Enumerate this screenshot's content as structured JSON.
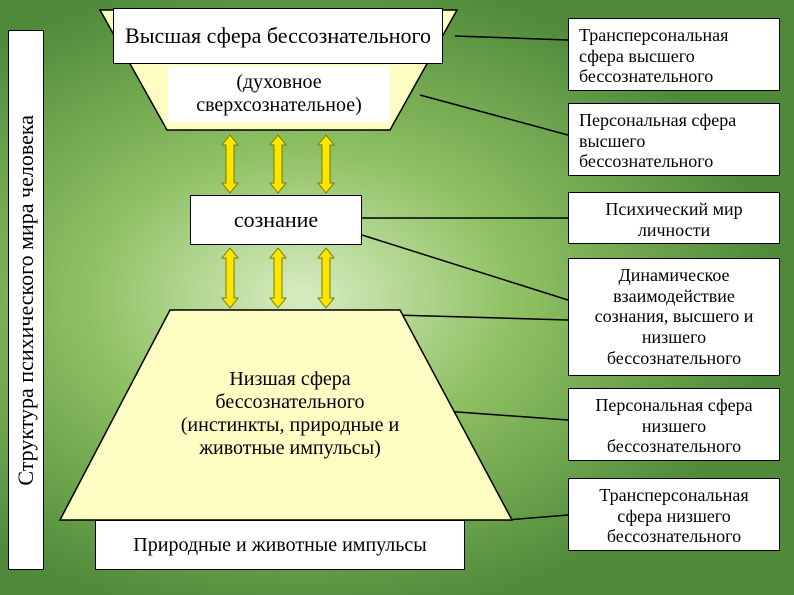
{
  "background": {
    "inner": "#d8edc2",
    "mid": "#8fc063",
    "outer": "#4e8a3a"
  },
  "sidebar_title": "Структура психического мира человека",
  "shapes": {
    "trapezoid_fill": "#fdfcc3",
    "trapezoid_stroke": "#000000",
    "arrow_fill": "#ffe500",
    "arrow_stroke": "#7a7a00",
    "connector_color": "#000000",
    "title_fontsize": 22,
    "text_fontsize": 18
  },
  "top_trap": {
    "title": "Высшая сфера бессознательного",
    "subtitle": "(духовное сверхсознательное)"
  },
  "mid_box": {
    "label": "сознание"
  },
  "low_trap": {
    "text": "Низшая сфера бессознательного (инстинкты, природные и животные импульсы)"
  },
  "bottom_box": {
    "label": "Природные и животные импульсы"
  },
  "right": [
    "Трансперсональная сфера высшего бессознательного",
    "Персональная сфера высшего бессознательного",
    "Психический мир личности",
    "Динамическое взаимодействие сознания, высшего и низшего бессознательного",
    "Персональная сфера низшего бессознательного",
    "Трансперсональная сфера низшего бессознательного"
  ]
}
